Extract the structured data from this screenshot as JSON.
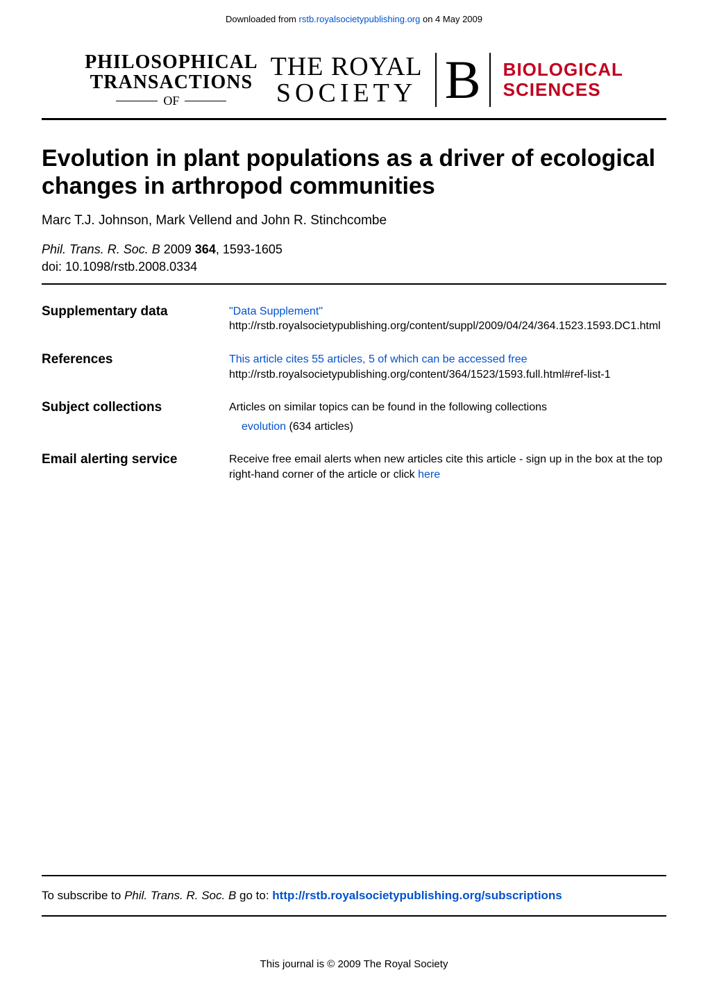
{
  "colors": {
    "link": "#0052cc",
    "brand_red": "#c1001f",
    "text": "#000000",
    "background": "#ffffff"
  },
  "download_note": {
    "prefix": "Downloaded from ",
    "link_text": "rstb.royalsocietypublishing.org",
    "suffix": " on 4 May 2009"
  },
  "masthead": {
    "phil_line1": "PHILOSOPHICAL",
    "phil_line2": "TRANSACTIONS",
    "of": "OF",
    "royal_line1": "THE ROYAL",
    "royal_line2": "SOCIETY",
    "b_glyph": "B",
    "bio_line1": "BIOLOGICAL",
    "bio_line2": "SCIENCES"
  },
  "title": "Evolution in plant populations as a driver of ecological changes in arthropod communities",
  "authors": "Marc T.J. Johnson, Mark Vellend and John R. Stinchcombe",
  "citation": {
    "journal": "Phil. Trans. R. Soc. B",
    "year": "2009",
    "volume": "364",
    "pages": "1593-1605",
    "doi_line": "doi: 10.1098/rstb.2008.0334"
  },
  "meta": {
    "supplementary": {
      "label": "Supplementary data",
      "link_text": "\"Data Supplement\"",
      "url_text": "http://rstb.royalsocietypublishing.org/content/suppl/2009/04/24/364.1523.1593.DC1.html"
    },
    "references": {
      "label": "References",
      "link_text": "This article cites 55 articles, 5 of which can be accessed free",
      "url_text": "http://rstb.royalsocietypublishing.org/content/364/1523/1593.full.html#ref-list-1"
    },
    "subjects": {
      "label": "Subject collections",
      "intro": "Articles on similar topics can be found in the following collections",
      "collection_link": "evolution",
      "collection_count": "(634 articles)"
    },
    "alerting": {
      "label": "Email alerting service",
      "text_before": "Receive free email alerts when new articles cite this article - sign up in the box at the top right-hand corner of the article or click ",
      "here": "here"
    }
  },
  "footer": {
    "subscribe_prefix": "To subscribe to ",
    "subscribe_journal": "Phil. Trans. R. Soc. B",
    "subscribe_mid": " go to: ",
    "subscribe_link": "http://rstb.royalsocietypublishing.org/subscriptions",
    "copyright": "This journal is © 2009 The Royal Society"
  }
}
